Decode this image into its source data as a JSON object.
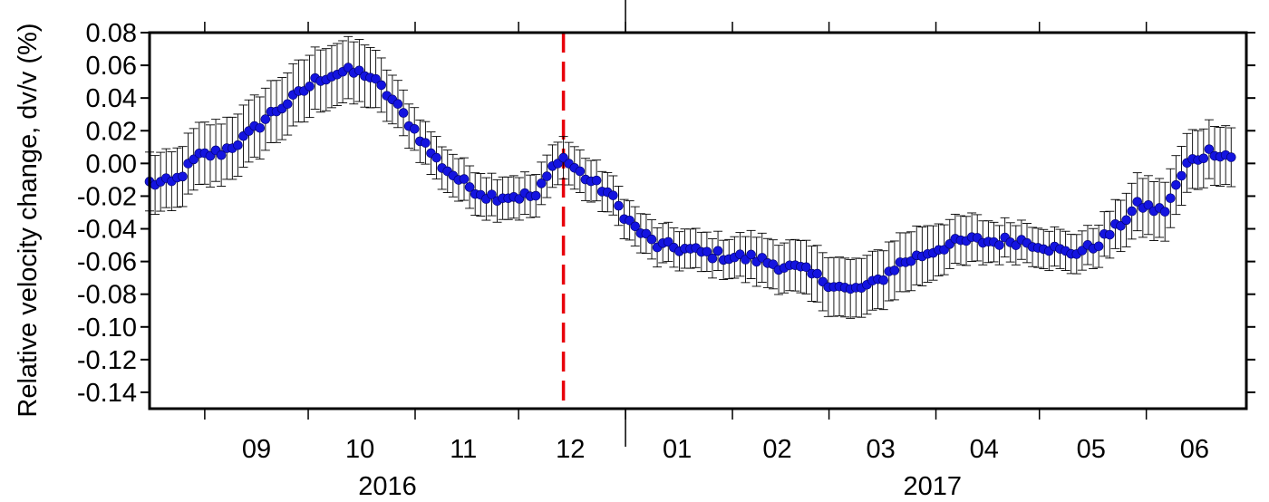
{
  "chart_data": {
    "type": "scatter",
    "title": "",
    "ylabel": "Relative velocity change, dv/v (%)",
    "xlabel": "",
    "xlim": [
      "2016-08-16",
      "2017-06-30"
    ],
    "ylim": [
      -0.15,
      0.08
    ],
    "yticks": [
      "0.08",
      "0.06",
      "0.04",
      "0.02",
      "0.00",
      "-0.02",
      "-0.04",
      "-0.06",
      "-0.08",
      "-0.10",
      "-0.12",
      "-0.14"
    ],
    "month_labels": [
      {
        "label": "09",
        "date": "2016-09-16"
      },
      {
        "label": "10",
        "date": "2016-10-16"
      },
      {
        "label": "11",
        "date": "2016-11-15"
      },
      {
        "label": "12",
        "date": "2016-12-16"
      },
      {
        "label": "01",
        "date": "2017-01-16"
      },
      {
        "label": "02",
        "date": "2017-02-14"
      },
      {
        "label": "03",
        "date": "2017-03-16"
      },
      {
        "label": "04",
        "date": "2017-04-15"
      },
      {
        "label": "05",
        "date": "2017-05-16"
      },
      {
        "label": "06",
        "date": "2017-06-15"
      }
    ],
    "month_boundaries": [
      "2016-09-01",
      "2016-10-01",
      "2016-11-01",
      "2016-12-01",
      "2017-01-01",
      "2017-02-01",
      "2017-03-01",
      "2017-04-01",
      "2017-05-01",
      "2017-06-01"
    ],
    "year_labels": [
      {
        "label": "2016",
        "date": "2016-10-24"
      },
      {
        "label": "2017",
        "date": "2017-03-31"
      }
    ],
    "year_boundary": "2017-01-01",
    "event_line": {
      "date": "2016-12-14",
      "color": "#e8000b",
      "style": "dashed"
    },
    "grid": false,
    "legend": "none",
    "marker_color": "#1414e0",
    "errorbar_color": "#000000",
    "series": [
      {
        "x": [
          "2016-08-16",
          "2016-08-23",
          "2016-08-30",
          "2016-09-06",
          "2016-09-13",
          "2016-09-20",
          "2016-09-27",
          "2016-10-04",
          "2016-10-11",
          "2016-10-18",
          "2016-10-25",
          "2016-11-01",
          "2016-11-08",
          "2016-11-15",
          "2016-11-22",
          "2016-11-29",
          "2016-12-06",
          "2016-12-13",
          "2016-12-20",
          "2016-12-27",
          "2017-01-03",
          "2017-01-10",
          "2017-01-17",
          "2017-01-24",
          "2017-01-31",
          "2017-02-07",
          "2017-02-14",
          "2017-02-21",
          "2017-02-28",
          "2017-03-07",
          "2017-03-14",
          "2017-03-21",
          "2017-03-28",
          "2017-04-04",
          "2017-04-11",
          "2017-04-18",
          "2017-04-25",
          "2017-05-02",
          "2017-05-09",
          "2017-05-16",
          "2017-05-23",
          "2017-05-30",
          "2017-06-06",
          "2017-06-13",
          "2017-06-20",
          "2017-06-27"
        ],
        "y": [
          -0.012,
          -0.012,
          0.004,
          0.007,
          0.016,
          0.03,
          0.04,
          0.052,
          0.056,
          0.055,
          0.04,
          0.02,
          0.0,
          -0.012,
          -0.02,
          -0.02,
          -0.02,
          0.005,
          -0.008,
          -0.018,
          -0.038,
          -0.05,
          -0.052,
          -0.055,
          -0.057,
          -0.058,
          -0.062,
          -0.065,
          -0.072,
          -0.078,
          -0.074,
          -0.062,
          -0.056,
          -0.05,
          -0.047,
          -0.048,
          -0.047,
          -0.05,
          -0.055,
          -0.052,
          -0.04,
          -0.025,
          -0.03,
          0.0,
          0.008,
          0.003
        ],
        "y_error": [
          0.018,
          0.018,
          0.019,
          0.019,
          0.019,
          0.019,
          0.019,
          0.019,
          0.019,
          0.019,
          0.015,
          0.013,
          0.013,
          0.013,
          0.013,
          0.013,
          0.013,
          0.013,
          0.013,
          0.012,
          0.012,
          0.012,
          0.012,
          0.012,
          0.012,
          0.015,
          0.015,
          0.016,
          0.018,
          0.018,
          0.018,
          0.018,
          0.018,
          0.015,
          0.015,
          0.012,
          0.012,
          0.012,
          0.012,
          0.012,
          0.015,
          0.018,
          0.018,
          0.018,
          0.018,
          0.018
        ]
      }
    ]
  }
}
